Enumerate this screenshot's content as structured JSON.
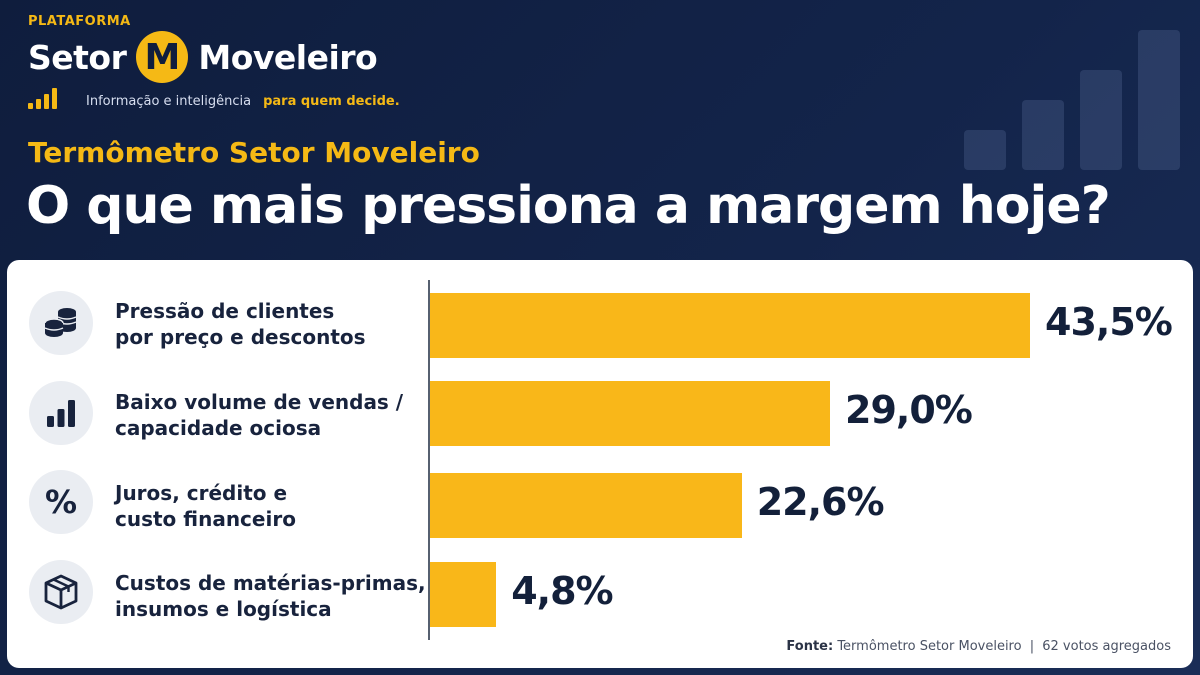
{
  "brand": {
    "tag": "PLATAFORMA",
    "name_left": "Setor",
    "logo_letter": "M",
    "name_right": "Moveleiro",
    "tagline": "Informação e inteligência",
    "tagline_accent": "para quem decide."
  },
  "header": {
    "subtitle": "Termômetro Setor Moveleiro",
    "title": "O que mais pressiona a margem hoje?"
  },
  "colors": {
    "bar": "#f9b719",
    "accent": "#f5b915",
    "background": "#13244a",
    "panel": "#ffffff",
    "text_dark": "#13203a"
  },
  "chart_data": {
    "type": "bar",
    "orientation": "horizontal",
    "title": "O que mais pressiona a margem hoje?",
    "categories": [
      "Pressão de clientes por preço e descontos",
      "Baixo volume de vendas / capacidade ociosa",
      "Juros, crédito e custo financeiro",
      "Custos de matérias-primas, insumos e logística"
    ],
    "values": [
      43.5,
      29.0,
      22.6,
      4.8
    ],
    "value_labels": [
      "43,5%",
      "29,0%",
      "22,6%",
      "4,8%"
    ],
    "unit": "%",
    "xlim": [
      0,
      43.5
    ],
    "grid": false,
    "legend": "none",
    "rows": [
      {
        "label_line1": "Pressão de clientes",
        "label_line2": "por preço e descontos",
        "icon": "coins-icon"
      },
      {
        "label_line1": "Baixo volume de vendas /",
        "label_line2": "capacidade ociosa",
        "icon": "bar-chart-icon"
      },
      {
        "label_line1": "Juros, crédito e",
        "label_line2": "custo financeiro",
        "icon": "percent-icon"
      },
      {
        "label_line1": "Custos de matérias-primas,",
        "label_line2": "insumos e logística",
        "icon": "box-icon"
      }
    ]
  },
  "source": {
    "label": "Fonte:",
    "text": "Termômetro Setor Moveleiro",
    "separator": "|",
    "votes": "62 votos agregados"
  }
}
